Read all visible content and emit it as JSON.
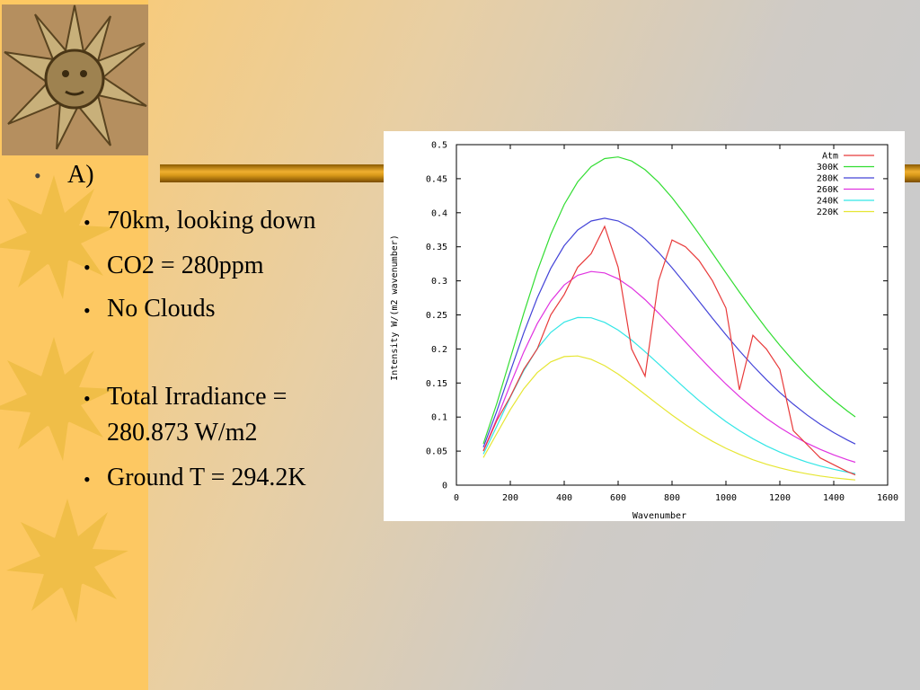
{
  "slide": {
    "heading": "A)",
    "items": [
      "70km, looking down",
      "CO2 = 280ppm",
      "No Clouds",
      "Total Irradiance = 280.873 W/m2",
      "Ground T = 294.2K"
    ]
  },
  "chart_data": {
    "type": "line",
    "x_label": "Wavenumber",
    "y_label": "Intensity W/(m2 wavenumber)",
    "x": [
      100,
      150,
      200,
      250,
      300,
      350,
      400,
      450,
      500,
      550,
      600,
      650,
      700,
      750,
      800,
      850,
      900,
      950,
      1000,
      1050,
      1100,
      1150,
      1200,
      1250,
      1300,
      1350,
      1400,
      1450,
      1480
    ],
    "series": [
      {
        "name": "Atm",
        "color": "#e83a3a",
        "values": [
          0.05,
          0.095,
          0.13,
          0.17,
          0.2,
          0.25,
          0.28,
          0.32,
          0.34,
          0.38,
          0.32,
          0.2,
          0.16,
          0.3,
          0.36,
          0.35,
          0.33,
          0.3,
          0.26,
          0.14,
          0.22,
          0.2,
          0.17,
          0.08,
          0.06,
          0.04,
          0.03,
          0.02,
          0.015
        ]
      },
      {
        "name": "300K",
        "color": "#33dd33",
        "values": [
          0.0608,
          0.1199,
          0.186,
          0.2524,
          0.3142,
          0.3681,
          0.4122,
          0.4454,
          0.4677,
          0.4795,
          0.4819,
          0.476,
          0.4632,
          0.4448,
          0.4222,
          0.3965,
          0.369,
          0.3405,
          0.3118,
          0.2835,
          0.2561,
          0.2299,
          0.2053,
          0.1825,
          0.1614,
          0.1422,
          0.1247,
          0.109,
          0.1003
        ]
      },
      {
        "name": "280K",
        "color": "#4444d8",
        "values": [
          0.0557,
          0.1087,
          0.1668,
          0.2237,
          0.2751,
          0.3183,
          0.3517,
          0.3747,
          0.3879,
          0.392,
          0.388,
          0.3775,
          0.3616,
          0.3418,
          0.3193,
          0.2951,
          0.2702,
          0.2451,
          0.2208,
          0.1974,
          0.1754,
          0.1549,
          0.136,
          0.1188,
          0.1033,
          0.0895,
          0.0772,
          0.0663,
          0.0604
        ]
      },
      {
        "name": "260K",
        "color": "#e033e0",
        "values": [
          0.0506,
          0.0976,
          0.1478,
          0.1956,
          0.2372,
          0.2702,
          0.2939,
          0.3082,
          0.3137,
          0.3116,
          0.3031,
          0.2895,
          0.2724,
          0.2528,
          0.2317,
          0.2101,
          0.1888,
          0.1681,
          0.1484,
          0.1302,
          0.1134,
          0.0982,
          0.0846,
          0.0725,
          0.0618,
          0.0525,
          0.0444,
          0.0374,
          0.0337
        ]
      },
      {
        "name": "240K",
        "color": "#33e6e6",
        "values": [
          0.0456,
          0.0866,
          0.1292,
          0.1682,
          0.2005,
          0.2243,
          0.2395,
          0.2462,
          0.2458,
          0.2391,
          0.2277,
          0.213,
          0.1961,
          0.178,
          0.1597,
          0.1416,
          0.1243,
          0.1082,
          0.0934,
          0.0801,
          0.0682,
          0.0577,
          0.0486,
          0.0407,
          0.0339,
          0.0281,
          0.0233,
          0.0191,
          0.017
        ]
      },
      {
        "name": "220K",
        "color": "#e6e633",
        "values": [
          0.0405,
          0.0758,
          0.1109,
          0.1416,
          0.1653,
          0.181,
          0.1888,
          0.1897,
          0.1848,
          0.1754,
          0.163,
          0.1486,
          0.1332,
          0.1178,
          0.1029,
          0.0889,
          0.076,
          0.0644,
          0.0541,
          0.0452,
          0.0374,
          0.0308,
          0.0253,
          0.0206,
          0.0167,
          0.0135,
          0.0108,
          0.0087,
          0.0076
        ]
      }
    ],
    "xlim": [
      0,
      1600
    ],
    "xticks": [
      0,
      200,
      400,
      600,
      800,
      1000,
      1200,
      1400,
      1600
    ],
    "ylim": [
      0,
      0.5
    ],
    "yticks": [
      0,
      0.05,
      0.1,
      0.15,
      0.2,
      0.25,
      0.3,
      0.35,
      0.4,
      0.45,
      0.5
    ],
    "legend": "top-right"
  }
}
